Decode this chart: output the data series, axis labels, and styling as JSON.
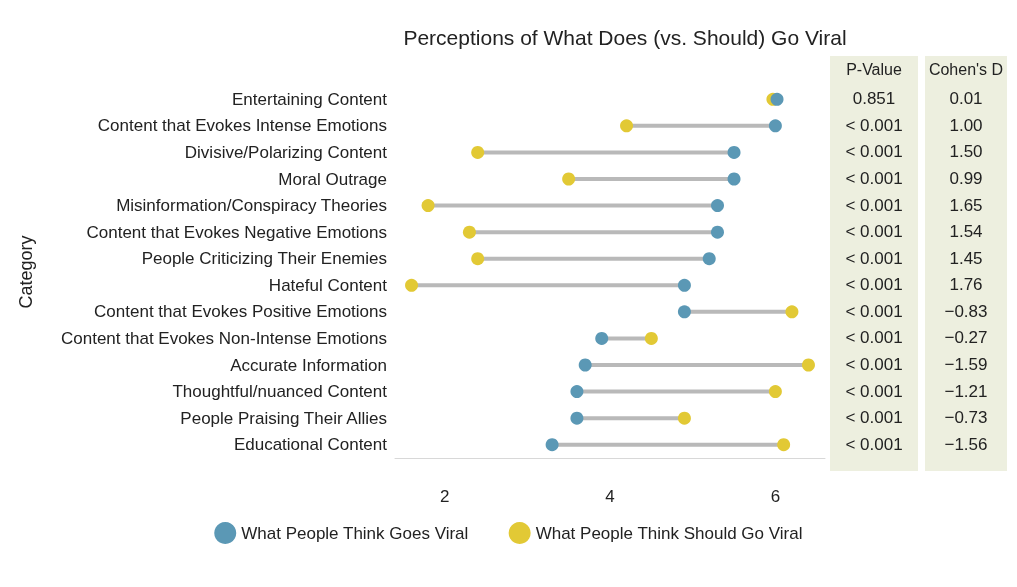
{
  "chart_data": [
    {
      "type": "scatter",
      "orientation": "horizontal",
      "title": "Perceptions of What Does (vs. Should) Go Viral",
      "ylabel": "Category",
      "categories": [
        "Entertaining Content",
        "Content that Evokes Intense Emotions",
        "Divisive/Polarizing Content",
        "Moral Outrage",
        "Misinformation/Conspiracy Theories",
        "Content that Evokes Negative Emotions",
        "People Criticizing Their Enemies",
        "Hateful Content",
        "Content that Evokes Positive Emotions",
        "Content that Evokes Non-Intense Emotions",
        "Accurate Information",
        "Thoughtful/nuanced Content",
        "People Praising Their Allies",
        "Educational Content"
      ],
      "series": [
        {
          "name": "What People Think Should Go Viral",
          "color": "#e2c935",
          "values": [
            5.97,
            4.2,
            2.4,
            3.5,
            1.8,
            2.3,
            2.4,
            1.6,
            6.2,
            4.5,
            6.4,
            6.0,
            4.9,
            6.1
          ]
        },
        {
          "name": "What People Think Goes Viral",
          "color": "#5b98b5",
          "values": [
            6.02,
            6.0,
            5.5,
            5.5,
            5.3,
            5.3,
            5.2,
            4.9,
            4.9,
            3.9,
            3.7,
            3.6,
            3.6,
            3.3
          ]
        }
      ],
      "xlim": [
        1.4,
        6.6
      ],
      "xticks": [
        2,
        4,
        6
      ],
      "grid": false,
      "legend": "bottom",
      "marker": "circle"
    },
    {
      "type": "other",
      "categories": [
        "P-Value",
        "Cohen's D"
      ],
      "cell_labels": [
        [
          "0.851",
          "0.01"
        ],
        [
          "< 0.001",
          "1.00"
        ],
        [
          "< 0.001",
          "1.50"
        ],
        [
          "< 0.001",
          "0.99"
        ],
        [
          "< 0.001",
          "1.65"
        ],
        [
          "< 0.001",
          "1.54"
        ],
        [
          "< 0.001",
          "1.45"
        ],
        [
          "< 0.001",
          "1.76"
        ],
        [
          "< 0.001",
          "−0.83"
        ],
        [
          "< 0.001",
          "−0.27"
        ],
        [
          "< 0.001",
          "−1.59"
        ],
        [
          "< 0.001",
          "−1.21"
        ],
        [
          "< 0.001",
          "−0.73"
        ],
        [
          "< 0.001",
          "−1.56"
        ]
      ]
    }
  ]
}
